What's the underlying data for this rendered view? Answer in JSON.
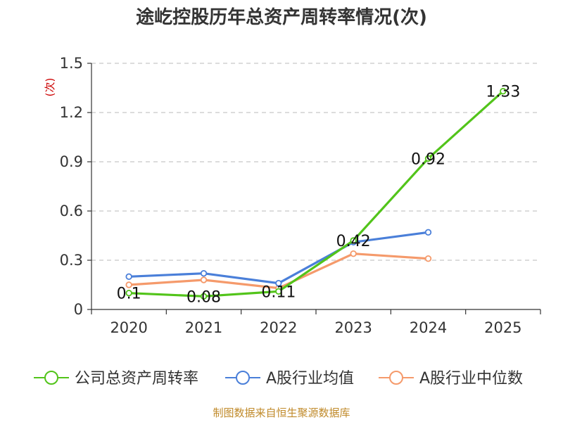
{
  "chart_data": {
    "type": "line",
    "title": "途屹控股历年总资产周转率情况(次)",
    "ylabel": "(次)",
    "xlabel": "",
    "categories": [
      "2020",
      "2021",
      "2022",
      "2023",
      "2024",
      "2025"
    ],
    "ylim": [
      0,
      1.5
    ],
    "yticks": [
      "0",
      "0.3",
      "0.6",
      "0.9",
      "1.2",
      "1.5"
    ],
    "grid": true,
    "legend_position": "bottom",
    "series": [
      {
        "name": "公司总资产周转率",
        "color": "#52c41a",
        "values": [
          0.1,
          0.08,
          0.11,
          0.42,
          0.92,
          1.33
        ],
        "data_labels": [
          "0.1",
          "0.08",
          "0.11",
          "0.42",
          "0.92",
          "1.33"
        ]
      },
      {
        "name": "A股行业均值",
        "color": "#4a7fd9",
        "values": [
          0.2,
          0.22,
          0.16,
          0.41,
          0.47,
          null
        ]
      },
      {
        "name": "A股行业中位数",
        "color": "#f59a6b",
        "values": [
          0.15,
          0.18,
          0.13,
          0.34,
          0.31,
          null
        ]
      }
    ]
  },
  "footer": "制图数据来自恒生聚源数据库"
}
